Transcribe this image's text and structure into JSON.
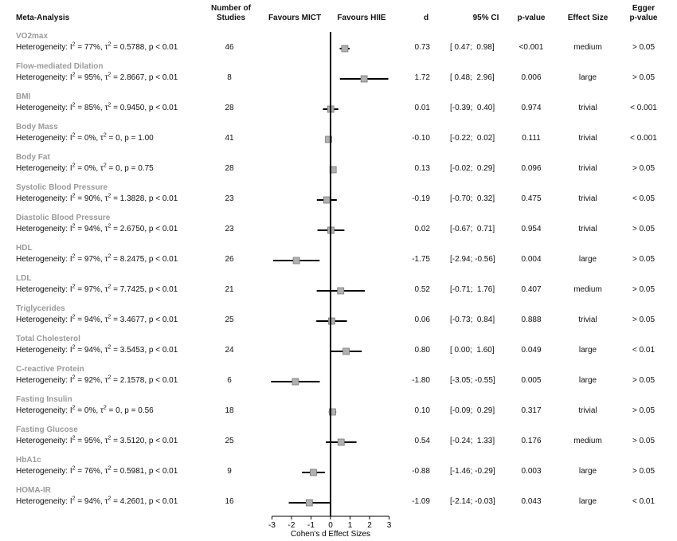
{
  "headers": {
    "meta": "Meta-Analysis",
    "studies_line1": "Number of",
    "studies_line2": "Studies",
    "favours_left": "Favours MICT",
    "favours_right": "Favours HIIE",
    "d": "d",
    "ci": "95% CI",
    "p": "p-value",
    "effect": "Effect Size",
    "egger_line1": "Egger",
    "egger_line2": "p-value"
  },
  "chart_data": {
    "type": "forest",
    "xlabel": "Cohen's d Effect Sizes",
    "xlim": [
      -3,
      3
    ],
    "xticks": [
      "-3",
      "-2",
      "-1",
      "0",
      "1",
      "2",
      "3"
    ],
    "rows": [
      {
        "name": "VO2max",
        "I2": "77%",
        "tau2": "0.5788",
        "p_het": "p < 0.01",
        "n": "46",
        "d": 0.73,
        "lo": 0.47,
        "hi": 0.98,
        "d_txt": "0.73",
        "ci_txt": "[ 0.47;  0.98]",
        "p": "<0.001",
        "effect": "medium",
        "egger": "> 0.05"
      },
      {
        "name": "Flow-mediated Dilation",
        "I2": "95%",
        "tau2": "2.8667",
        "p_het": "p < 0.01",
        "n": "8",
        "d": 1.72,
        "lo": 0.48,
        "hi": 2.96,
        "d_txt": "1.72",
        "ci_txt": "[ 0.48;  2.96]",
        "p": "0.006",
        "effect": "large",
        "egger": "> 0.05"
      },
      {
        "name": "BMI",
        "I2": "85%",
        "tau2": "0.9450",
        "p_het": "p < 0.01",
        "n": "28",
        "d": 0.01,
        "lo": -0.39,
        "hi": 0.4,
        "d_txt": "0.01",
        "ci_txt": "[-0.39;  0.40]",
        "p": "0.974",
        "effect": "trivial",
        "egger": "< 0.001"
      },
      {
        "name": "Body Mass",
        "I2": "0%",
        "tau2": "0",
        "p_het": "p = 1.00",
        "n": "41",
        "d": -0.1,
        "lo": -0.22,
        "hi": 0.02,
        "d_txt": "-0.10",
        "ci_txt": "[-0.22;  0.02]",
        "p": "0.111",
        "effect": "trivial",
        "egger": "< 0.001"
      },
      {
        "name": "Body Fat",
        "I2": "0%",
        "tau2": "0",
        "p_het": "p = 0.75",
        "n": "28",
        "d": 0.13,
        "lo": -0.02,
        "hi": 0.29,
        "d_txt": "0.13",
        "ci_txt": "[-0.02;  0.29]",
        "p": "0.096",
        "effect": "trivial",
        "egger": "> 0.05"
      },
      {
        "name": "Systolic Blood Pressure",
        "I2": "90%",
        "tau2": "1.3828",
        "p_het": "p < 0.01",
        "n": "23",
        "d": -0.19,
        "lo": -0.7,
        "hi": 0.32,
        "d_txt": "-0.19",
        "ci_txt": "[-0.70;  0.32]",
        "p": "0.475",
        "effect": "trivial",
        "egger": "< 0.05"
      },
      {
        "name": "Diastolic Blood Pressure",
        "I2": "94%",
        "tau2": "2.6750",
        "p_het": "p < 0.01",
        "n": "23",
        "d": 0.02,
        "lo": -0.67,
        "hi": 0.71,
        "d_txt": "0.02",
        "ci_txt": "[-0.67;  0.71]",
        "p": "0.954",
        "effect": "trivial",
        "egger": "> 0.05"
      },
      {
        "name": "HDL",
        "I2": "97%",
        "tau2": "8.2475",
        "p_het": "p < 0.01",
        "n": "26",
        "d": -1.75,
        "lo": -2.94,
        "hi": -0.56,
        "d_txt": "-1.75",
        "ci_txt": "[-2.94; -0.56]",
        "p": "0.004",
        "effect": "large",
        "egger": "> 0.05"
      },
      {
        "name": "LDL",
        "I2": "97%",
        "tau2": "7.7425",
        "p_het": "p < 0.01",
        "n": "21",
        "d": 0.52,
        "lo": -0.71,
        "hi": 1.76,
        "d_txt": "0.52",
        "ci_txt": "[-0.71;  1.76]",
        "p": "0.407",
        "effect": "medium",
        "egger": "> 0.05"
      },
      {
        "name": "Triglycerides",
        "I2": "94%",
        "tau2": "3.4677",
        "p_het": "p < 0.01",
        "n": "25",
        "d": 0.06,
        "lo": -0.73,
        "hi": 0.84,
        "d_txt": "0.06",
        "ci_txt": "[-0.73;  0.84]",
        "p": "0.888",
        "effect": "trivial",
        "egger": "> 0.05"
      },
      {
        "name": "Total Cholesterol",
        "I2": "94%",
        "tau2": "3.5453",
        "p_het": "p < 0.01",
        "n": "24",
        "d": 0.8,
        "lo": 0.0,
        "hi": 1.6,
        "d_txt": "0.80",
        "ci_txt": "[ 0.00;  1.60]",
        "p": "0.049",
        "effect": "large",
        "egger": "< 0.01"
      },
      {
        "name": "C-reactive Protein",
        "I2": "92%",
        "tau2": "2.1578",
        "p_het": "p < 0.01",
        "n": "6",
        "d": -1.8,
        "lo": -3.05,
        "hi": -0.55,
        "d_txt": "-1.80",
        "ci_txt": "[-3.05; -0.55]",
        "p": "0.005",
        "effect": "large",
        "egger": "> 0.05"
      },
      {
        "name": "Fasting Insulin",
        "I2": "0%",
        "tau2": "0",
        "p_het": "p = 0.56",
        "n": "18",
        "d": 0.1,
        "lo": -0.09,
        "hi": 0.29,
        "d_txt": "0.10",
        "ci_txt": "[-0.09;  0.29]",
        "p": "0.317",
        "effect": "trivial",
        "egger": "> 0.05"
      },
      {
        "name": "Fasting Glucose",
        "I2": "95%",
        "tau2": "3.5120",
        "p_het": "p < 0.01",
        "n": "25",
        "d": 0.54,
        "lo": -0.24,
        "hi": 1.33,
        "d_txt": "0.54",
        "ci_txt": "[-0.24;  1.33]",
        "p": "0.176",
        "effect": "medium",
        "egger": "> 0.05"
      },
      {
        "name": "HbA1c",
        "I2": "76%",
        "tau2": "0.5981",
        "p_het": "p < 0.01",
        "n": "9",
        "d": -0.88,
        "lo": -1.46,
        "hi": -0.29,
        "d_txt": "-0.88",
        "ci_txt": "[-1.46; -0.29]",
        "p": "0.003",
        "effect": "large",
        "egger": "> 0.05"
      },
      {
        "name": "HOMA-IR",
        "I2": "94%",
        "tau2": "4.2601",
        "p_het": "p < 0.01",
        "n": "16",
        "d": -1.09,
        "lo": -2.14,
        "hi": -0.03,
        "d_txt": "-1.09",
        "ci_txt": "[-2.14; -0.03]",
        "p": "0.043",
        "effect": "large",
        "egger": "< 0.01"
      }
    ]
  },
  "colors": {
    "name": "#9a9a9a",
    "marker": "#b0b0b0",
    "line": "#000000"
  }
}
